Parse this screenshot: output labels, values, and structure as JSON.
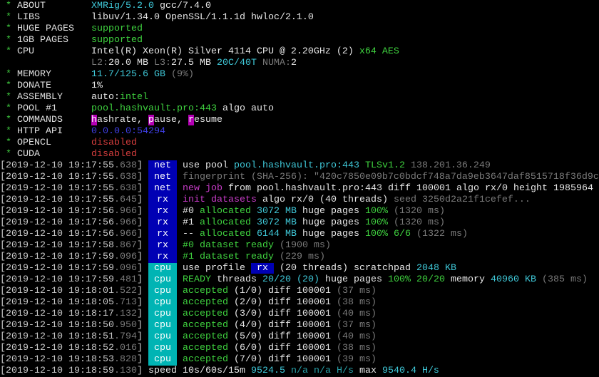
{
  "colors": {
    "net_badge": "#0000b4",
    "rx_badge": "#0000b4",
    "cpu_badge": "#00b4b4",
    "green": "#3fd23f",
    "cyan": "#3fc8d8",
    "gray": "#7a7a7a",
    "magenta": "#c83cc8",
    "red": "#d23c3c",
    "blue": "#3f3fe6"
  },
  "header": {
    "rows": [
      {
        "star": "*",
        "label": "ABOUT",
        "segments": [
          {
            "t": "XMRig/5.2.0",
            "c": "cyan"
          },
          {
            "t": " gcc/7.4.0",
            "c": "white"
          }
        ]
      },
      {
        "star": "*",
        "label": "LIBS",
        "segments": [
          {
            "t": "libuv/1.34.0 OpenSSL/1.1.1d hwloc/2.1.0",
            "c": "white"
          }
        ]
      },
      {
        "star": "*",
        "label": "HUGE PAGES",
        "segments": [
          {
            "t": "supported",
            "c": "green"
          }
        ]
      },
      {
        "star": "*",
        "label": "1GB PAGES",
        "segments": [
          {
            "t": "supported",
            "c": "green"
          }
        ]
      },
      {
        "star": "*",
        "label": "CPU",
        "segments": [
          {
            "t": "Intel(R) Xeon(R) Silver 4114 CPU @ 2.20GHz (2)",
            "c": "white"
          },
          {
            "t": " x64 AES",
            "c": "green"
          }
        ]
      },
      {
        "star": "",
        "label": "",
        "segments": [
          {
            "t": "L2:",
            "c": "gray"
          },
          {
            "t": "20.0 MB",
            "c": "white"
          },
          {
            "t": " L3:",
            "c": "gray"
          },
          {
            "t": "27.5 MB",
            "c": "white"
          },
          {
            "t": " 20C/40T",
            "c": "cyan"
          },
          {
            "t": " NUMA:",
            "c": "gray"
          },
          {
            "t": "2",
            "c": "white"
          }
        ]
      },
      {
        "star": "*",
        "label": "MEMORY",
        "segments": [
          {
            "t": "11.7/125.6 GB",
            "c": "cyan"
          },
          {
            "t": " (9%)",
            "c": "gray"
          }
        ]
      },
      {
        "star": "*",
        "label": "DONATE",
        "segments": [
          {
            "t": "1%",
            "c": "white"
          }
        ]
      },
      {
        "star": "*",
        "label": "ASSEMBLY",
        "segments": [
          {
            "t": "auto:",
            "c": "white"
          },
          {
            "t": "intel",
            "c": "green"
          }
        ]
      },
      {
        "star": "*",
        "label": "POOL #1",
        "segments": [
          {
            "t": "pool.hashvault.pro:443",
            "c": "green"
          },
          {
            "t": " algo auto",
            "c": "white"
          }
        ]
      },
      {
        "star": "*",
        "label": "COMMANDS",
        "segments": [
          {
            "t": "h",
            "c": "hl"
          },
          {
            "t": "ashrate, ",
            "c": "white"
          },
          {
            "t": "p",
            "c": "hl"
          },
          {
            "t": "ause, ",
            "c": "white"
          },
          {
            "t": "r",
            "c": "hl"
          },
          {
            "t": "esume",
            "c": "white"
          }
        ]
      },
      {
        "star": "*",
        "label": "HTTP API",
        "segments": [
          {
            "t": "0.0.0.0:54294",
            "c": "blue"
          }
        ]
      },
      {
        "star": "*",
        "label": "OPENCL",
        "segments": [
          {
            "t": "disabled",
            "c": "red"
          }
        ]
      },
      {
        "star": "*",
        "label": "CUDA",
        "segments": [
          {
            "t": "disabled",
            "c": "red"
          }
        ]
      }
    ]
  },
  "log": {
    "rows": [
      {
        "ts_open": "[",
        "ts": "2019-12-10 19:17:55",
        "ms": ".638",
        "ts_close": "]",
        "badge": "net",
        "segments": [
          {
            "t": "use pool ",
            "c": "white"
          },
          {
            "t": "pool.hashvault.pro:443",
            "c": "cyan"
          },
          {
            "t": " TLSv1.2",
            "c": "green"
          },
          {
            "t": " 138.201.36.249",
            "c": "gray"
          }
        ]
      },
      {
        "ts_open": "[",
        "ts": "2019-12-10 19:17:55",
        "ms": ".638",
        "ts_close": "]",
        "badge": "net",
        "segments": [
          {
            "t": "fingerprint (SHA-256): \"420c7850e09b7c0bdcf748a7da9eb3647daf8515718f36d9c",
            "c": "gray"
          }
        ]
      },
      {
        "ts_open": "[",
        "ts": "2019-12-10 19:17:55",
        "ms": ".638",
        "ts_close": "]",
        "badge": "net",
        "segments": [
          {
            "t": "new job",
            "c": "magenta"
          },
          {
            "t": " from ",
            "c": "white"
          },
          {
            "t": "pool.hashvault.pro:443",
            "c": "white"
          },
          {
            "t": " diff ",
            "c": "white"
          },
          {
            "t": "100001",
            "c": "white"
          },
          {
            "t": " algo ",
            "c": "white"
          },
          {
            "t": "rx/0",
            "c": "white"
          },
          {
            "t": " height ",
            "c": "white"
          },
          {
            "t": "1985964",
            "c": "white"
          }
        ]
      },
      {
        "ts_open": "[",
        "ts": "2019-12-10 19:17:55",
        "ms": ".645",
        "ts_close": "]",
        "badge": "rx",
        "segments": [
          {
            "t": "init datasets",
            "c": "magenta"
          },
          {
            "t": " algo ",
            "c": "white"
          },
          {
            "t": "rx/0",
            "c": "white"
          },
          {
            "t": " (40 threads)",
            "c": "white"
          },
          {
            "t": " seed 3250d2a21f1cefef...",
            "c": "gray"
          }
        ]
      },
      {
        "ts_open": "[",
        "ts": "2019-12-10 19:17:56",
        "ms": ".966",
        "ts_close": "]",
        "badge": "rx",
        "segments": [
          {
            "t": "#0",
            "c": "white"
          },
          {
            "t": " allocated",
            "c": "green"
          },
          {
            "t": " 3072 MB",
            "c": "cyan"
          },
          {
            "t": " huge pages ",
            "c": "white"
          },
          {
            "t": "100%",
            "c": "green"
          },
          {
            "t": " (1320 ms)",
            "c": "gray"
          }
        ]
      },
      {
        "ts_open": "[",
        "ts": "2019-12-10 19:17:56",
        "ms": ".966",
        "ts_close": "]",
        "badge": "rx",
        "segments": [
          {
            "t": "#1",
            "c": "white"
          },
          {
            "t": " allocated",
            "c": "green"
          },
          {
            "t": " 3072 MB",
            "c": "cyan"
          },
          {
            "t": " huge pages ",
            "c": "white"
          },
          {
            "t": "100%",
            "c": "green"
          },
          {
            "t": " (1320 ms)",
            "c": "gray"
          }
        ]
      },
      {
        "ts_open": "[",
        "ts": "2019-12-10 19:17:56",
        "ms": ".966",
        "ts_close": "]",
        "badge": "rx",
        "segments": [
          {
            "t": "--",
            "c": "white"
          },
          {
            "t": " allocated",
            "c": "green"
          },
          {
            "t": " 6144 MB",
            "c": "cyan"
          },
          {
            "t": " huge pages ",
            "c": "white"
          },
          {
            "t": "100% 6/6",
            "c": "green"
          },
          {
            "t": " (1322 ms)",
            "c": "gray"
          }
        ]
      },
      {
        "ts_open": "[",
        "ts": "2019-12-10 19:17:58",
        "ms": ".867",
        "ts_close": "]",
        "badge": "rx",
        "segments": [
          {
            "t": "#0 dataset ready",
            "c": "green"
          },
          {
            "t": " (1900 ms)",
            "c": "gray"
          }
        ]
      },
      {
        "ts_open": "[",
        "ts": "2019-12-10 19:17:59",
        "ms": ".096",
        "ts_close": "]",
        "badge": "rx",
        "segments": [
          {
            "t": "#1 dataset ready",
            "c": "green"
          },
          {
            "t": " (229 ms)",
            "c": "gray"
          }
        ]
      },
      {
        "ts_open": "[",
        "ts": "2019-12-10 19:17:59",
        "ms": ".096",
        "ts_close": "]",
        "badge": "cpu",
        "segments": [
          {
            "t": "use profile ",
            "c": "white"
          },
          {
            "t": " rx ",
            "c": "inbadge"
          },
          {
            "t": " (20 threads)",
            "c": "white"
          },
          {
            "t": " scratchpad ",
            "c": "white"
          },
          {
            "t": "2048 KB",
            "c": "cyan"
          }
        ]
      },
      {
        "ts_open": "[",
        "ts": "2019-12-10 19:17:59",
        "ms": ".481",
        "ts_close": "]",
        "badge": "cpu",
        "segments": [
          {
            "t": "READY",
            "c": "green"
          },
          {
            "t": " threads ",
            "c": "white"
          },
          {
            "t": "20/20",
            "c": "cyan"
          },
          {
            "t": " (20)",
            "c": "cyan"
          },
          {
            "t": " huge pages ",
            "c": "white"
          },
          {
            "t": "100% 20/20",
            "c": "green"
          },
          {
            "t": " memory ",
            "c": "white"
          },
          {
            "t": "40960 KB",
            "c": "cyan"
          },
          {
            "t": " (385 ms)",
            "c": "gray"
          }
        ]
      },
      {
        "ts_open": "[",
        "ts": "2019-12-10 19:18:01",
        "ms": ".522",
        "ts_close": "]",
        "badge": "cpu",
        "segments": [
          {
            "t": "accepted",
            "c": "green"
          },
          {
            "t": " (1/0)",
            "c": "white"
          },
          {
            "t": " diff ",
            "c": "white"
          },
          {
            "t": "100001",
            "c": "white"
          },
          {
            "t": " (37 ms)",
            "c": "gray"
          }
        ]
      },
      {
        "ts_open": "[",
        "ts": "2019-12-10 19:18:05",
        "ms": ".713",
        "ts_close": "]",
        "badge": "cpu",
        "segments": [
          {
            "t": "accepted",
            "c": "green"
          },
          {
            "t": " (2/0)",
            "c": "white"
          },
          {
            "t": " diff ",
            "c": "white"
          },
          {
            "t": "100001",
            "c": "white"
          },
          {
            "t": " (38 ms)",
            "c": "gray"
          }
        ]
      },
      {
        "ts_open": "[",
        "ts": "2019-12-10 19:18:17",
        "ms": ".132",
        "ts_close": "]",
        "badge": "cpu",
        "segments": [
          {
            "t": "accepted",
            "c": "green"
          },
          {
            "t": " (3/0)",
            "c": "white"
          },
          {
            "t": " diff ",
            "c": "white"
          },
          {
            "t": "100001",
            "c": "white"
          },
          {
            "t": " (40 ms)",
            "c": "gray"
          }
        ]
      },
      {
        "ts_open": "[",
        "ts": "2019-12-10 19:18:50",
        "ms": ".950",
        "ts_close": "]",
        "badge": "cpu",
        "segments": [
          {
            "t": "accepted",
            "c": "green"
          },
          {
            "t": " (4/0)",
            "c": "white"
          },
          {
            "t": " diff ",
            "c": "white"
          },
          {
            "t": "100001",
            "c": "white"
          },
          {
            "t": " (37 ms)",
            "c": "gray"
          }
        ]
      },
      {
        "ts_open": "[",
        "ts": "2019-12-10 19:18:51",
        "ms": ".794",
        "ts_close": "]",
        "badge": "cpu",
        "segments": [
          {
            "t": "accepted",
            "c": "green"
          },
          {
            "t": " (5/0)",
            "c": "white"
          },
          {
            "t": " diff ",
            "c": "white"
          },
          {
            "t": "100001",
            "c": "white"
          },
          {
            "t": " (40 ms)",
            "c": "gray"
          }
        ]
      },
      {
        "ts_open": "[",
        "ts": "2019-12-10 19:18:52",
        "ms": ".016",
        "ts_close": "]",
        "badge": "cpu",
        "segments": [
          {
            "t": "accepted",
            "c": "green"
          },
          {
            "t": " (6/0)",
            "c": "white"
          },
          {
            "t": " diff ",
            "c": "white"
          },
          {
            "t": "100001",
            "c": "white"
          },
          {
            "t": " (38 ms)",
            "c": "gray"
          }
        ]
      },
      {
        "ts_open": "[",
        "ts": "2019-12-10 19:18:53",
        "ms": ".828",
        "ts_close": "]",
        "badge": "cpu",
        "segments": [
          {
            "t": "accepted",
            "c": "green"
          },
          {
            "t": " (7/0)",
            "c": "white"
          },
          {
            "t": " diff ",
            "c": "white"
          },
          {
            "t": "100001",
            "c": "white"
          },
          {
            "t": " (39 ms)",
            "c": "gray"
          }
        ]
      },
      {
        "ts_open": "[",
        "ts": "2019-12-10 19:18:59",
        "ms": ".130",
        "ts_close": "]",
        "badge": "",
        "segments": [
          {
            "t": "speed 10s/60s/15m ",
            "c": "white"
          },
          {
            "t": "9524.5",
            "c": "cyan"
          },
          {
            "t": " n/a n/a H/s",
            "c": "dimcyan"
          },
          {
            "t": " max ",
            "c": "white"
          },
          {
            "t": "9540.4 H/s",
            "c": "cyan"
          }
        ]
      }
    ]
  }
}
